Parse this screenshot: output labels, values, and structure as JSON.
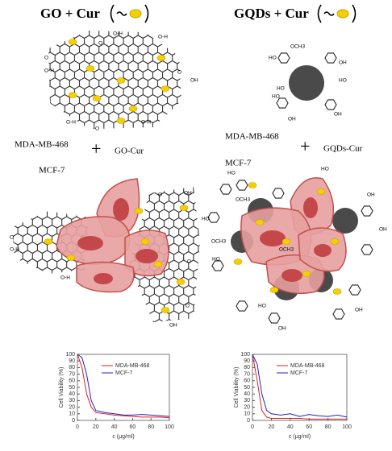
{
  "left": {
    "title": "GO + Cur",
    "cell_lines": [
      "MDA-MB-468",
      "MCF-7"
    ],
    "plus": "+",
    "agent": "GO-Cur",
    "groups": [
      "O-H",
      "O",
      "O-H",
      "O",
      "O-H",
      "O",
      "OH",
      "O-H",
      "O",
      "O-H",
      "O",
      "O-H",
      "O",
      "OH",
      "O",
      "O-H",
      "O",
      "OH"
    ]
  },
  "right": {
    "title": "GQDs + Cur",
    "cell_lines": [
      "MDA-MB-468",
      "MCF-7"
    ],
    "plus": "+",
    "agent": "GQDs-Cur",
    "groups": [
      "OCH3",
      "HO",
      "HO",
      "OH",
      "HO",
      "HO",
      "OH",
      "OH",
      "HO",
      "OCH3",
      "HO",
      "OCH3",
      "HO",
      "OH",
      "OH",
      "HO",
      "OCH3",
      "OH",
      "HO",
      "OH"
    ]
  },
  "chart_data": [
    {
      "type": "line",
      "xlabel": "c (μg/ml)",
      "ylabel": "Cell Viability (%)",
      "x": [
        0,
        5,
        10,
        15,
        20,
        30,
        40,
        50,
        60,
        70,
        80,
        90,
        100
      ],
      "series": [
        {
          "name": "MDA-MB-468",
          "color": "#e02020",
          "values": [
            100,
            80,
            40,
            20,
            12,
            10,
            8,
            7,
            6,
            5,
            5,
            5,
            4
          ]
        },
        {
          "name": "MCF-7",
          "color": "#2020d0",
          "values": [
            100,
            95,
            70,
            30,
            15,
            12,
            10,
            8,
            8,
            9,
            8,
            7,
            6
          ]
        }
      ],
      "xlim": [
        0,
        100
      ],
      "ylim": [
        0,
        100
      ],
      "xticks": [
        0,
        20,
        40,
        60,
        80,
        100
      ],
      "yticks": [
        0,
        10,
        20,
        30,
        40,
        50,
        60,
        70,
        80,
        90,
        100
      ]
    },
    {
      "type": "line",
      "xlabel": "c (μg/ml)",
      "ylabel": "Cell Viability (%)",
      "x": [
        0,
        5,
        10,
        15,
        20,
        30,
        40,
        50,
        60,
        70,
        80,
        90,
        100
      ],
      "series": [
        {
          "name": "MDA-MB-468",
          "color": "#e02020",
          "values": [
            100,
            60,
            15,
            5,
            3,
            3,
            3,
            3,
            2,
            2,
            2,
            2,
            2
          ]
        },
        {
          "name": "MCF-7",
          "color": "#2020d0",
          "values": [
            100,
            85,
            40,
            15,
            10,
            8,
            10,
            6,
            9,
            7,
            6,
            8,
            5
          ]
        }
      ],
      "xlim": [
        0,
        100
      ],
      "ylim": [
        0,
        100
      ],
      "xticks": [
        0,
        20,
        40,
        60,
        80,
        100
      ],
      "yticks": [
        0,
        10,
        20,
        30,
        40,
        50,
        60,
        70,
        80,
        90,
        100
      ]
    }
  ]
}
